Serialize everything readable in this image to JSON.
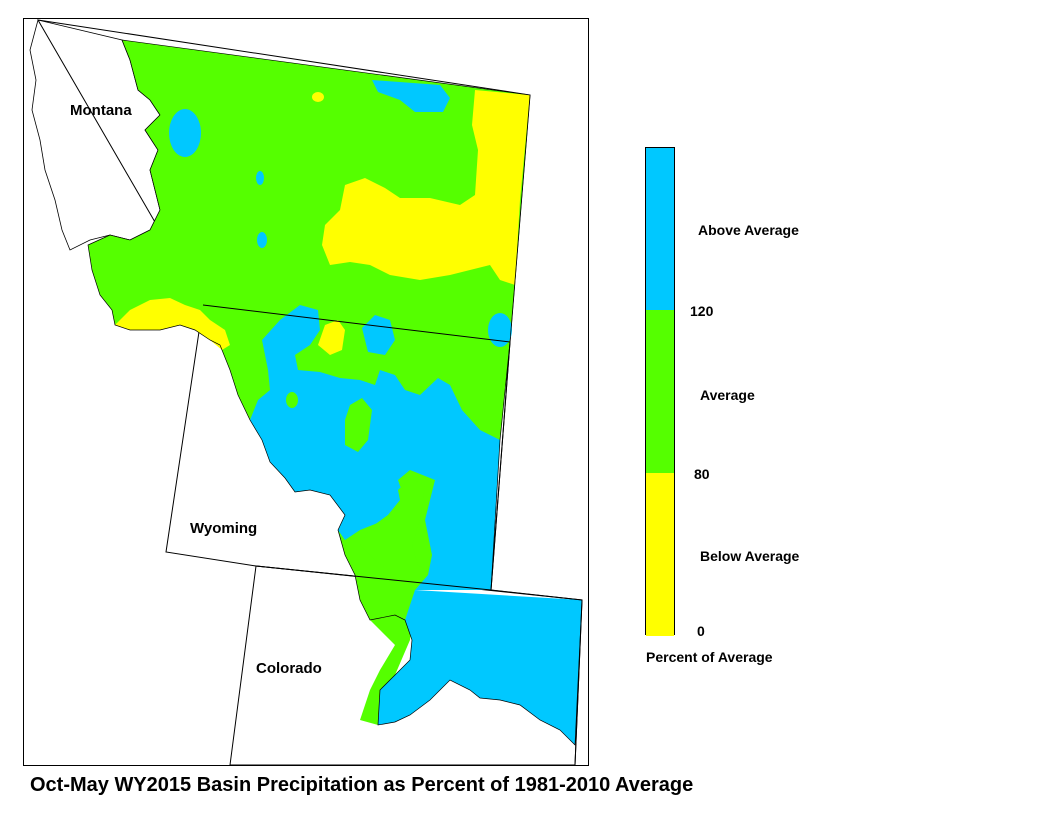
{
  "map": {
    "labels": {
      "montana": "Montana",
      "wyoming": "Wyoming",
      "colorado": "Colorado"
    }
  },
  "legend": {
    "classes": [
      {
        "label": "Above Average",
        "color": "#00c8ff",
        "range": [
          120,
          null
        ]
      },
      {
        "label": "Average",
        "color": "#55ff00",
        "range": [
          80,
          120
        ]
      },
      {
        "label": "Below Average",
        "color": "#ffff00",
        "range": [
          0,
          80
        ]
      }
    ],
    "breaks": {
      "b120": "120",
      "b80": "80",
      "b0": "0"
    },
    "caption": "Percent of Average"
  },
  "title": "Oct-May WY2015 Basin Precipitation as Percent of 1981-2010 Average"
}
